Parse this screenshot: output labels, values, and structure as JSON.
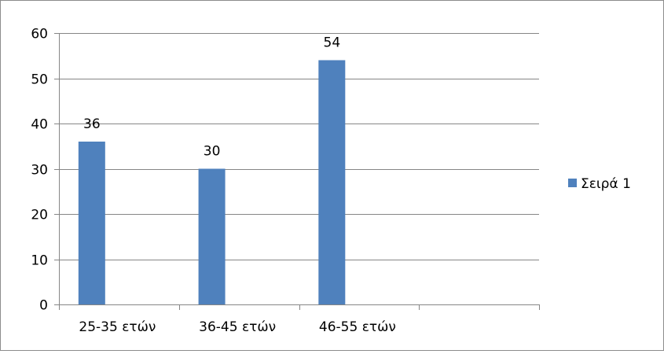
{
  "chart_data": {
    "type": "bar",
    "categories": [
      "25-35 ετών",
      "36-45 ετών",
      "46-55 ετών",
      ""
    ],
    "series": [
      {
        "name": "Σειρά 1",
        "values": [
          36,
          30,
          54,
          null
        ],
        "color": "#4f81bd"
      }
    ],
    "data_labels": [
      "36",
      "30",
      "54",
      ""
    ],
    "ylim": [
      0,
      60
    ],
    "yticks": [
      0,
      10,
      20,
      30,
      40,
      50,
      60
    ],
    "grid": true,
    "legend": "right",
    "title": "",
    "xlabel": "",
    "ylabel": ""
  }
}
